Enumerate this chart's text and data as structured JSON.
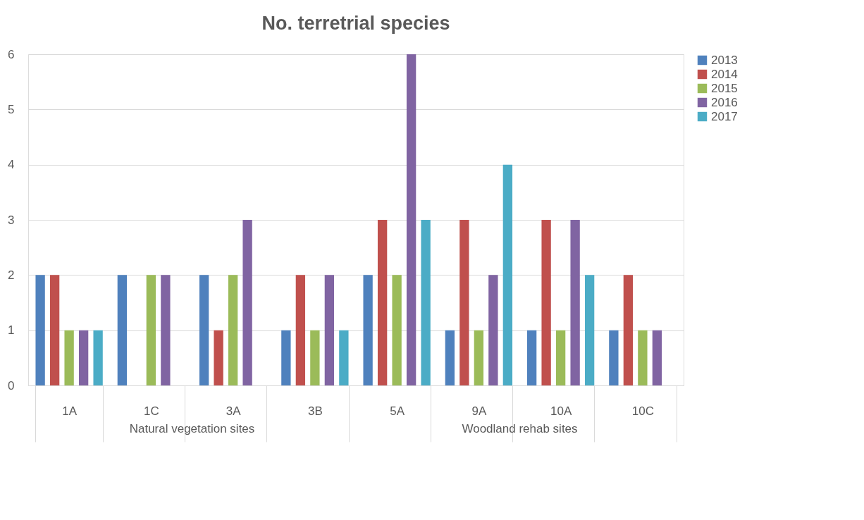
{
  "chart_data": {
    "type": "bar",
    "title": "No. terretrial species",
    "categories": [
      "1A",
      "1C",
      "3A",
      "3B",
      "5A",
      "9A",
      "10A",
      "10C"
    ],
    "series": [
      {
        "name": "2013",
        "color": "#4f81bd",
        "values": [
          2,
          2,
          2,
          1,
          2,
          1,
          1,
          1
        ]
      },
      {
        "name": "2014",
        "color": "#c0504d",
        "values": [
          2,
          0,
          1,
          2,
          3,
          3,
          3,
          2
        ]
      },
      {
        "name": "2015",
        "color": "#9bbb59",
        "values": [
          1,
          2,
          2,
          1,
          2,
          1,
          1,
          1
        ]
      },
      {
        "name": "2016",
        "color": "#8064a2",
        "values": [
          1,
          2,
          3,
          2,
          6,
          2,
          3,
          1
        ]
      },
      {
        "name": "2017",
        "color": "#4bacc6",
        "values": [
          1,
          0,
          0,
          1,
          3,
          4,
          2,
          0
        ]
      }
    ],
    "annotations": [
      "Natural vegetation sites",
      "Woodland rehab sites"
    ],
    "ylim": [
      0,
      6
    ],
    "yticks": [
      0,
      1,
      2,
      3,
      4,
      5,
      6
    ],
    "grid": "y",
    "legend": "right"
  }
}
